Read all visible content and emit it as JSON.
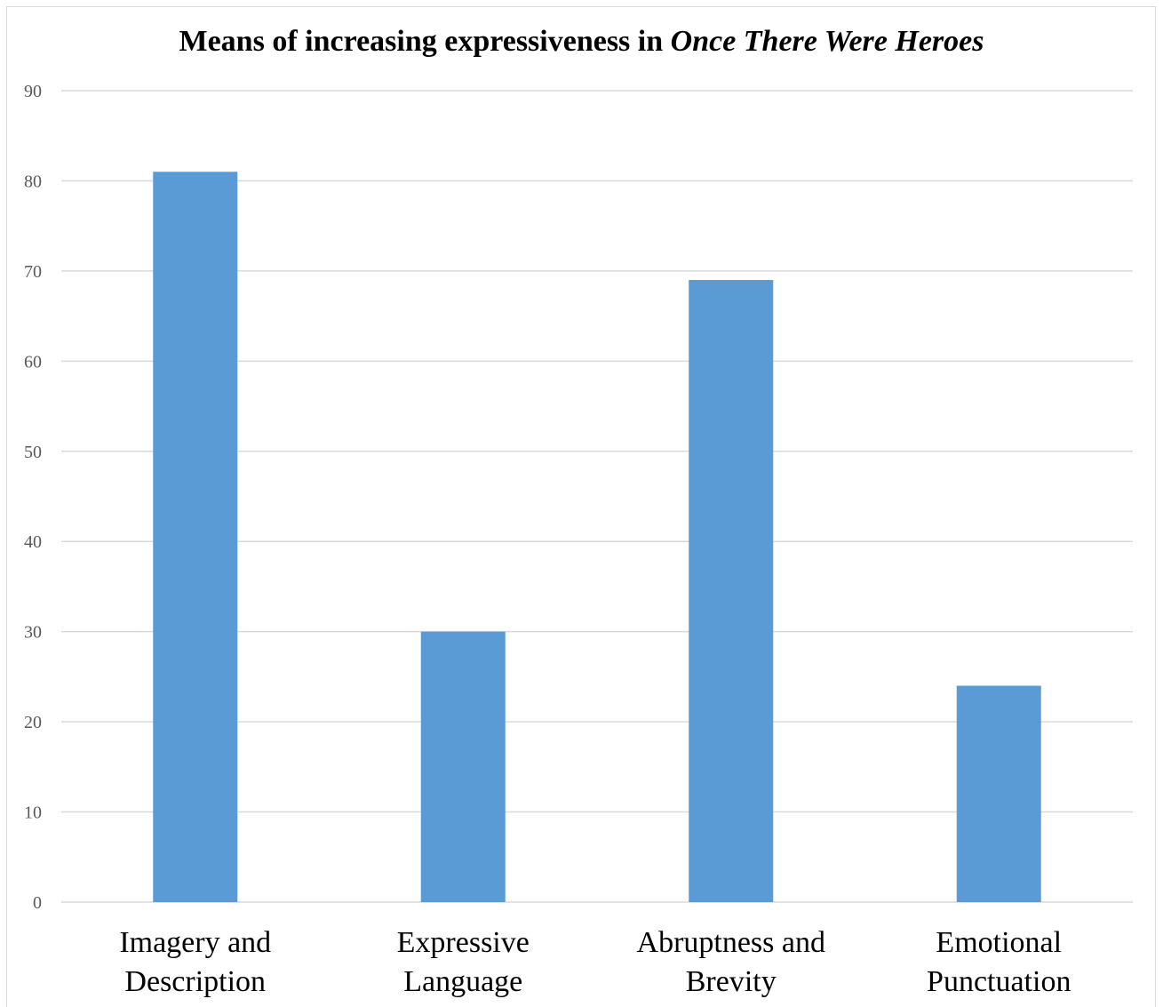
{
  "chart_data": {
    "type": "bar",
    "title_prefix": "Means of increasing expressiveness in ",
    "title_italic": "Once There Were Heroes",
    "categories": [
      [
        "Imagery and",
        "Description"
      ],
      [
        "Expressive",
        "Language"
      ],
      [
        "Abruptness and",
        "Brevity"
      ],
      [
        "Emotional",
        "Punctuation"
      ]
    ],
    "values": [
      81,
      30,
      69,
      24
    ],
    "ylim": [
      0,
      90
    ],
    "yticks": [
      0,
      10,
      20,
      30,
      40,
      50,
      60,
      70,
      80,
      90
    ],
    "grid": true,
    "legend": "none",
    "xlabel": "",
    "ylabel": "",
    "bar_color": "#5b9bd5",
    "grid_color": "#d9d9d9"
  }
}
